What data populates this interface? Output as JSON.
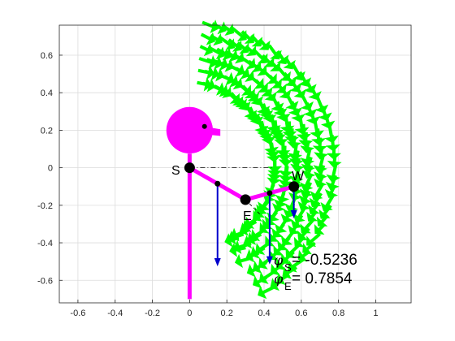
{
  "chart_data": {
    "type": "vector-field",
    "xlim": [
      -0.7,
      1.19
    ],
    "ylim": [
      -0.72,
      0.76
    ],
    "xticks": [
      -0.6,
      -0.4,
      -0.2,
      0,
      0.2,
      0.4,
      0.6,
      0.8,
      1
    ],
    "yticks": [
      -0.6,
      -0.4,
      -0.2,
      0,
      0.2,
      0.4,
      0.6
    ],
    "xtick_labels": [
      "-0.6",
      "-0.4",
      "-0.2",
      "0",
      "0.2",
      "0.4",
      "0.6",
      "0.8",
      "1"
    ],
    "ytick_labels": [
      "0.6",
      "0.4",
      "0.2",
      "0",
      "-0.2",
      "-0.4",
      "-0.6"
    ],
    "grid": true,
    "colors": {
      "body": "#ff00ff",
      "field": "#00ff00",
      "force": "#0000cc",
      "joint": "#000000",
      "grid": "#dcdcdc"
    },
    "body": {
      "head_center": [
        0.0,
        0.2
      ],
      "head_radius": 0.125,
      "eye": [
        0.08,
        0.22
      ],
      "trunk_bottom": [
        0.0,
        -0.7
      ]
    },
    "joints": {
      "shoulder": {
        "label": "S",
        "x": 0.0,
        "y": 0.0
      },
      "elbow": {
        "label": "E",
        "x": 0.3,
        "y": -0.17
      },
      "wrist": {
        "label": "W",
        "x": 0.56,
        "y": -0.1
      }
    },
    "mass_points": [
      [
        0.15,
        -0.085
      ],
      [
        0.43,
        -0.135
      ]
    ],
    "force_vectors": [
      {
        "x": 0.15,
        "y": -0.085,
        "dx": 0.0,
        "dy": -0.44
      },
      {
        "x": 0.43,
        "y": -0.135,
        "dx": 0.0,
        "dy": -0.38
      },
      {
        "x": 0.56,
        "y": -0.1,
        "dx": 0.0,
        "dy": -0.17
      }
    ],
    "field_region": {
      "inner_radius": 0.46,
      "outer_radius": 0.84,
      "start_angle_deg": 85,
      "end_angle_deg": -58
    },
    "annotations": {
      "phi_s_symbol": "φ",
      "phi_s_sub": "S",
      "phi_s_value": " = -0.5236",
      "phi_e_symbol": "φ",
      "phi_e_sub": "E",
      "phi_e_value": " = 0.7854"
    }
  }
}
